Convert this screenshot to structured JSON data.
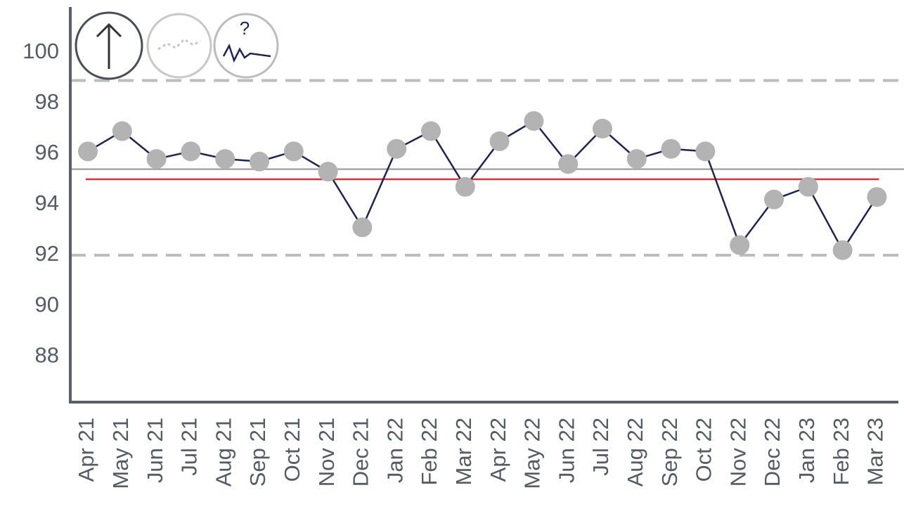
{
  "chart_data": {
    "type": "line",
    "categories": [
      "Apr 21",
      "May 21",
      "Jun 21",
      "Jul 21",
      "Aug 21",
      "Sep 21",
      "Oct 21",
      "Nov 21",
      "Dec 21",
      "Jan 22",
      "Feb 22",
      "Mar 22",
      "Apr 22",
      "May 22",
      "Jun 22",
      "Jul 22",
      "Aug 22",
      "Sep 22",
      "Oct 22",
      "Nov 22",
      "Dec 22",
      "Jan 23",
      "Feb 23",
      "Mar 23"
    ],
    "values": [
      96.1,
      96.9,
      95.8,
      96.1,
      95.8,
      95.7,
      96.1,
      95.3,
      93.1,
      96.2,
      96.9,
      94.7,
      96.5,
      97.3,
      95.6,
      97.0,
      95.8,
      96.2,
      96.1,
      92.4,
      94.2,
      94.7,
      92.2,
      94.3
    ],
    "color": "#1f2350",
    "marker_color": "#b3b3b3",
    "ylim": [
      86.2,
      101.8
    ],
    "yticks": [
      88,
      90,
      92,
      94,
      96,
      98,
      100
    ],
    "reference_lines": [
      {
        "value": 98.9,
        "color": "#bdbdbd",
        "dashed": true
      },
      {
        "value": 92.0,
        "color": "#bdbdbd",
        "dashed": true
      },
      {
        "value": 95.4,
        "color": "#a6a6a6",
        "dashed": false
      },
      {
        "value": 95.0,
        "color": "#d0323c",
        "dashed": false
      }
    ],
    "icon_label": "?"
  }
}
